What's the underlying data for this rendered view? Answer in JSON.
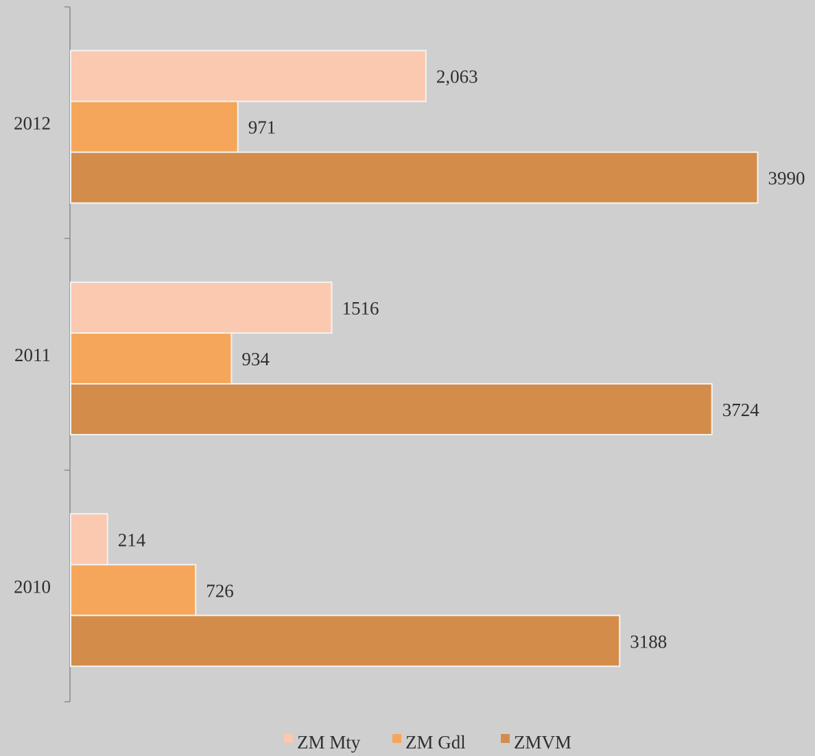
{
  "chart_data": {
    "type": "bar",
    "orientation": "horizontal",
    "categories": [
      "2012",
      "2011",
      "2010"
    ],
    "series": [
      {
        "name": "ZM Mty",
        "color": "#fbc8b0",
        "values": [
          2063,
          1516,
          214
        ],
        "labels": [
          "2,063",
          "1516",
          "214"
        ]
      },
      {
        "name": "ZM Gdl",
        "color": "#f6a65a",
        "values": [
          971,
          934,
          726
        ],
        "labels": [
          "971",
          "934",
          "726"
        ]
      },
      {
        "name": "ZMVM",
        "color": "#d38c49",
        "values": [
          3990,
          3724,
          3188
        ],
        "labels": [
          "3990",
          "3724",
          "3188"
        ]
      }
    ],
    "xlim": [
      0,
      4000
    ],
    "grid": false,
    "legend_position": "bottom",
    "title": "",
    "xlabel": "",
    "ylabel": ""
  }
}
